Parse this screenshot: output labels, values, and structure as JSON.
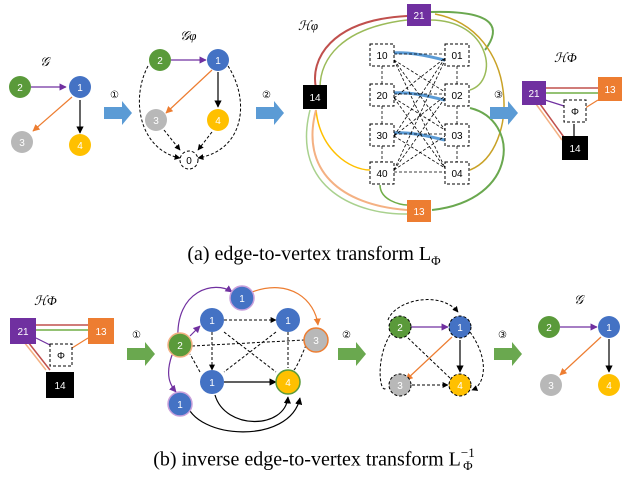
{
  "colors": {
    "green": "#5a9a3a",
    "blue": "#4472c4",
    "gray": "#b8b8b8",
    "yellow": "#ffc000",
    "purple": "#7030a0",
    "orange": "#ed7d31",
    "black": "#000000",
    "arrow": "#5b9bd5",
    "arrow_green": "#6aa84f"
  },
  "top": {
    "g_label": "𝒢",
    "gphi_label": "𝒢φ",
    "hphi_label": "ℋφ",
    "hPhi_label": "ℋΦ",
    "steps": [
      "①",
      "②",
      "③"
    ],
    "nodes": {
      "n2": "2",
      "n1": "1",
      "n3": "3",
      "n4": "4",
      "n0": "0"
    },
    "boxes": [
      "10",
      "01",
      "20",
      "02",
      "30",
      "03",
      "40",
      "04"
    ],
    "squares": {
      "s21": "21",
      "s14": "14",
      "s13": "13",
      "phi": "Φ"
    },
    "caption": "(a) edge-to-vertex transform L",
    "caption_sub": "Φ"
  },
  "bottom": {
    "hPhi_label": "ℋΦ",
    "g_label": "𝒢",
    "steps": [
      "①",
      "②",
      "③"
    ],
    "squares": {
      "s21": "21",
      "s13": "13",
      "s14": "14",
      "phi": "Φ"
    },
    "nodes": {
      "n2": "2",
      "n1": "1",
      "n3": "3",
      "n4": "4"
    },
    "caption": "(b) inverse edge-to-vertex transform L",
    "caption_sub": "Φ",
    "caption_sup": "−1"
  }
}
